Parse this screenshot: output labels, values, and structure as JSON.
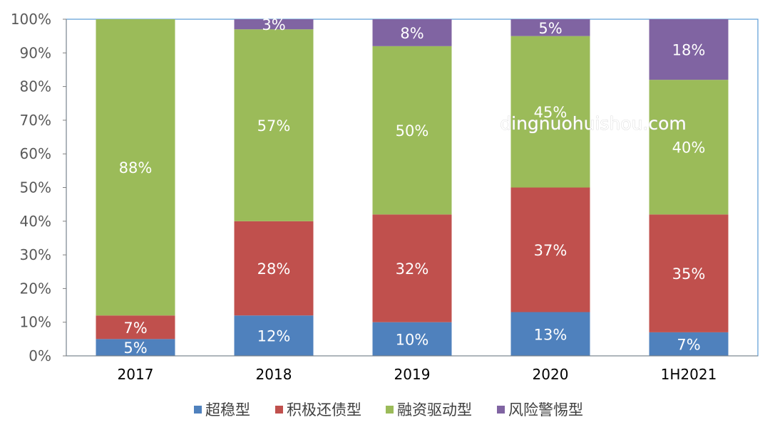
{
  "chart_data": {
    "type": "bar",
    "stacked": true,
    "categories": [
      "2017",
      "2018",
      "2019",
      "2020",
      "1H2021"
    ],
    "yticks": [
      "0%",
      "10%",
      "20%",
      "30%",
      "40%",
      "50%",
      "60%",
      "70%",
      "80%",
      "90%",
      "100%"
    ],
    "ylim": [
      0,
      100
    ],
    "grid": false,
    "legend_position": "bottom",
    "series": [
      {
        "name": "超稳型",
        "color": "#4f81bd",
        "values": [
          5,
          12,
          10,
          13,
          7
        ],
        "labels": [
          "5%",
          "12%",
          "10%",
          "13%",
          "7%"
        ]
      },
      {
        "name": "积极还债型",
        "color": "#c0504d",
        "values": [
          7,
          28,
          32,
          37,
          35
        ],
        "labels": [
          "7%",
          "28%",
          "32%",
          "37%",
          "35%"
        ]
      },
      {
        "name": "融资驱动型",
        "color": "#9bbb59",
        "values": [
          88,
          57,
          50,
          45,
          40
        ],
        "labels": [
          "88%",
          "57%",
          "50%",
          "45%",
          "40%"
        ]
      },
      {
        "name": "风险警惕型",
        "color": "#8064a2",
        "values": [
          0,
          3,
          8,
          5,
          18
        ],
        "labels": [
          "",
          "3%",
          "8%",
          "5%",
          "18%"
        ]
      }
    ],
    "xlabel": "",
    "ylabel": ""
  },
  "watermark": "dingnuohuishou.com"
}
